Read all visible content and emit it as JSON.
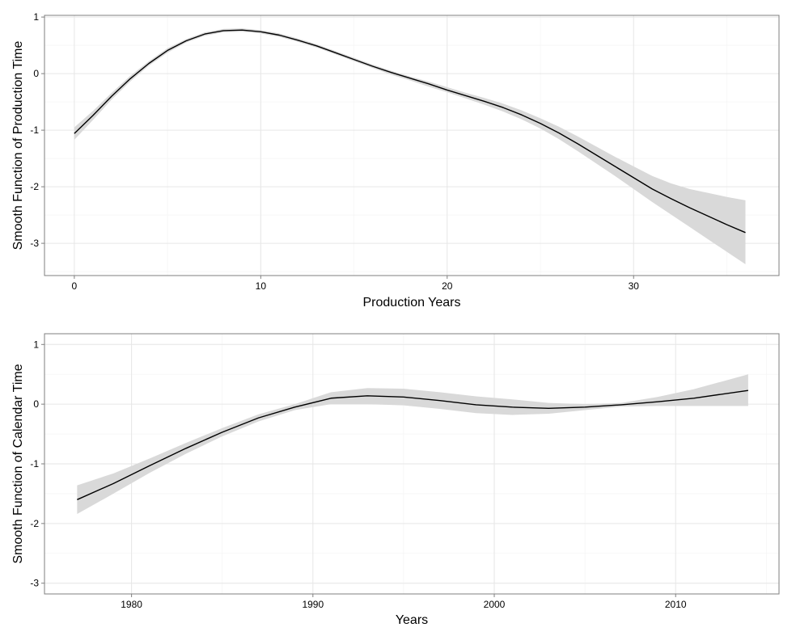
{
  "chart_data": [
    {
      "type": "line",
      "title": "",
      "xlabel": "Production Years",
      "ylabel": "Smooth Function of Production Time",
      "xlim": [
        -1.6,
        37.8
      ],
      "ylim": [
        -3.57,
        1.03
      ],
      "xticks": [
        0,
        10,
        20,
        30
      ],
      "yticks": [
        1,
        0,
        -1,
        -2,
        -3
      ],
      "x_tick_labels": [
        "0",
        "10",
        "20",
        "30"
      ],
      "y_tick_labels": [
        "1",
        "0",
        "-1",
        "-2",
        "-3"
      ],
      "grid": true,
      "legend": "none",
      "series": [
        {
          "x": [
            0,
            1,
            2,
            3,
            4,
            5,
            6,
            7,
            8,
            9,
            10,
            11,
            12,
            13,
            14,
            15,
            16,
            17,
            18,
            19,
            20,
            21,
            22,
            23,
            24,
            25,
            26,
            27,
            28,
            29,
            30,
            31,
            32,
            33,
            34,
            35,
            36
          ],
          "y": [
            -1.06,
            -0.74,
            -0.4,
            -0.09,
            0.18,
            0.41,
            0.58,
            0.7,
            0.76,
            0.77,
            0.74,
            0.68,
            0.59,
            0.49,
            0.37,
            0.25,
            0.13,
            0.02,
            -0.08,
            -0.18,
            -0.29,
            -0.39,
            -0.49,
            -0.6,
            -0.73,
            -0.88,
            -1.05,
            -1.24,
            -1.44,
            -1.64,
            -1.84,
            -2.04,
            -2.21,
            -2.37,
            -2.52,
            -2.67,
            -2.81
          ],
          "ci_lower": [
            -1.17,
            -0.82,
            -0.46,
            -0.14,
            0.14,
            0.37,
            0.55,
            0.67,
            0.73,
            0.74,
            0.71,
            0.65,
            0.56,
            0.46,
            0.34,
            0.22,
            0.1,
            -0.02,
            -0.12,
            -0.23,
            -0.33,
            -0.44,
            -0.55,
            -0.67,
            -0.81,
            -0.97,
            -1.16,
            -1.37,
            -1.59,
            -1.81,
            -2.04,
            -2.27,
            -2.49,
            -2.71,
            -2.93,
            -3.15,
            -3.37
          ],
          "ci_upper": [
            -0.95,
            -0.66,
            -0.34,
            -0.04,
            0.22,
            0.45,
            0.61,
            0.73,
            0.79,
            0.8,
            0.77,
            0.71,
            0.62,
            0.52,
            0.4,
            0.28,
            0.16,
            0.05,
            -0.05,
            -0.14,
            -0.24,
            -0.34,
            -0.43,
            -0.53,
            -0.65,
            -0.79,
            -0.94,
            -1.11,
            -1.29,
            -1.47,
            -1.64,
            -1.81,
            -1.94,
            -2.04,
            -2.11,
            -2.18,
            -2.24
          ]
        }
      ]
    },
    {
      "type": "line",
      "title": "",
      "xlabel": "Years",
      "ylabel": "Smooth Function of Calendar Time",
      "xlim": [
        1975.2,
        2015.7
      ],
      "ylim": [
        -3.18,
        1.18
      ],
      "xticks": [
        1980,
        1990,
        2000,
        2010
      ],
      "yticks": [
        1,
        0,
        -1,
        -2,
        -3
      ],
      "x_tick_labels": [
        "1980",
        "1990",
        "2000",
        "2010"
      ],
      "y_tick_labels": [
        "1",
        "0",
        "-1",
        "-2",
        "-3"
      ],
      "grid": true,
      "legend": "none",
      "series": [
        {
          "x": [
            1977,
            1979,
            1981,
            1983,
            1985,
            1987,
            1989,
            1991,
            1993,
            1995,
            1997,
            1999,
            2001,
            2003,
            2005,
            2007,
            2009,
            2011,
            2014
          ],
          "y": [
            -1.6,
            -1.33,
            -1.03,
            -0.74,
            -0.47,
            -0.23,
            -0.05,
            0.1,
            0.14,
            0.12,
            0.06,
            -0.01,
            -0.05,
            -0.07,
            -0.05,
            -0.01,
            0.04,
            0.1,
            0.23
          ],
          "ci_lower": [
            -1.84,
            -1.5,
            -1.15,
            -0.83,
            -0.54,
            -0.29,
            -0.1,
            0.0,
            0.0,
            -0.02,
            -0.08,
            -0.15,
            -0.18,
            -0.16,
            -0.1,
            -0.04,
            -0.03,
            -0.03,
            -0.03
          ],
          "ci_upper": [
            -1.36,
            -1.16,
            -0.91,
            -0.65,
            -0.4,
            -0.17,
            0.0,
            0.2,
            0.27,
            0.26,
            0.2,
            0.13,
            0.08,
            0.02,
            0.0,
            0.02,
            0.12,
            0.25,
            0.5
          ]
        }
      ]
    }
  ]
}
